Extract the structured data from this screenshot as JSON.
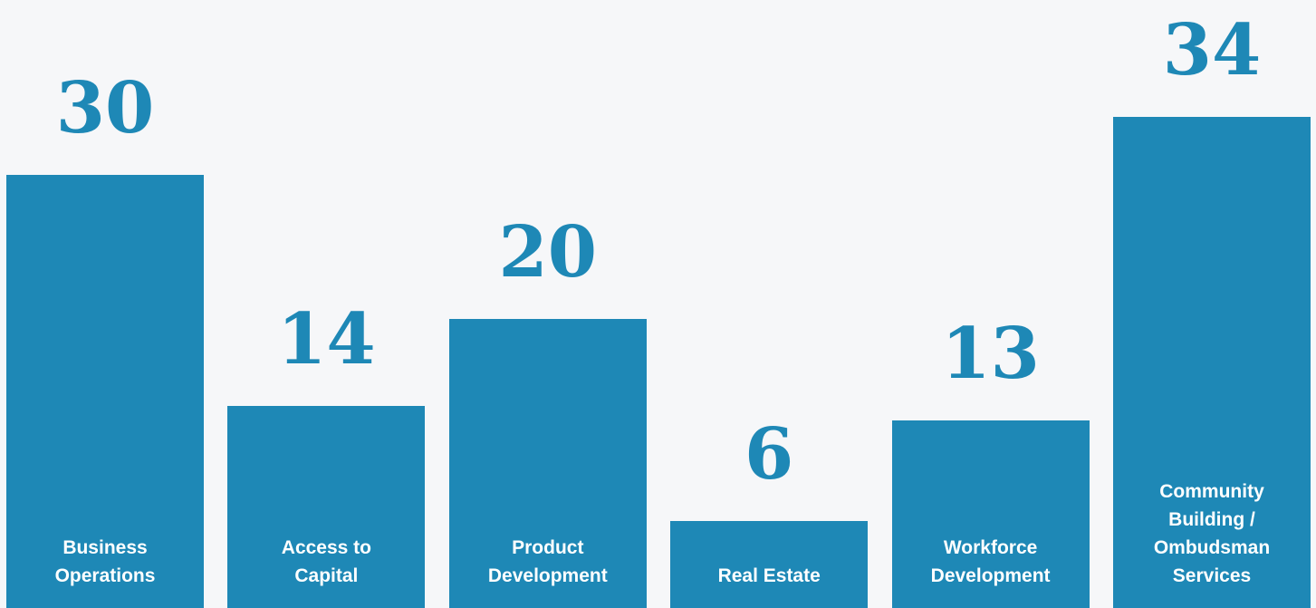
{
  "chart_data": {
    "type": "bar",
    "categories": [
      "Business Operations",
      "Access to Capital",
      "Product Development",
      "Real Estate",
      "Workforce Development",
      "Community Building / Ombudsman Services"
    ],
    "values": [
      30,
      14,
      20,
      6,
      13,
      34
    ],
    "color": "#1e88b6"
  }
}
